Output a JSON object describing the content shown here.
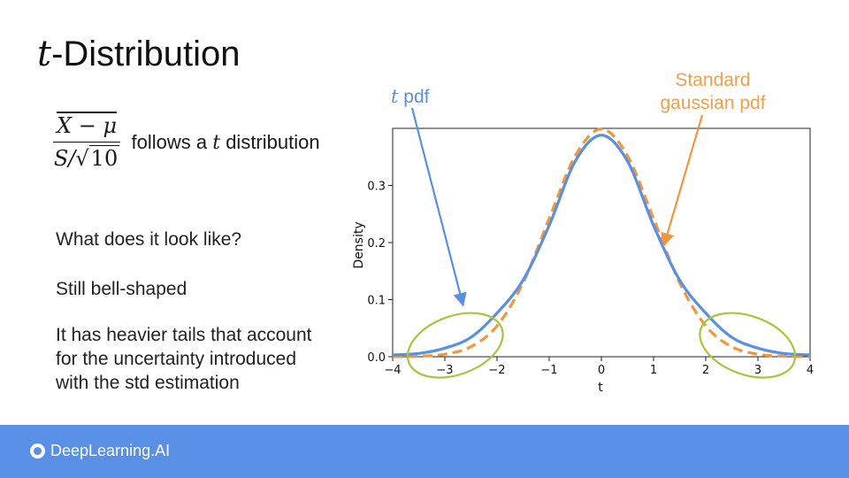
{
  "title": {
    "t": "t",
    "rest": "-Distribution"
  },
  "formula": {
    "numerator": "X − μ",
    "denominator_s": "S/",
    "sqrt_symbol": "√",
    "radicand": "10",
    "follows_prefix": "follows a ",
    "follows_t": "t",
    "follows_suffix": " distribution"
  },
  "body": {
    "q1": "What does it look like?",
    "q2": "Still bell-shaped",
    "q3_line1": "It has heavier tails that account",
    "q3_line2": "for the uncertainty introduced",
    "q3_line3": "with the std estimation"
  },
  "annotations": {
    "t_pdf_t": "t",
    "t_pdf_rest": " pdf",
    "gaussian_line1": "Standard",
    "gaussian_line2": "gaussian pdf"
  },
  "footer": {
    "brand": "DeepLearning.AI"
  },
  "colors": {
    "t_pdf": "#5b8fe0",
    "gaussian": "#f0963e",
    "tail_circles": "#a8c43a",
    "footer": "#5a8fe6"
  },
  "chart_data": {
    "type": "line",
    "xlabel": "t",
    "ylabel": "Density",
    "xlim": [
      -4,
      4
    ],
    "ylim": [
      0,
      0.4
    ],
    "xticks": [
      -4,
      -3,
      -2,
      -1,
      0,
      1,
      2,
      3,
      4
    ],
    "xtick_labels": [
      "−4",
      "−3",
      "−2",
      "−1",
      "0",
      "1",
      "2",
      "3",
      "4"
    ],
    "yticks": [
      0.0,
      0.1,
      0.2,
      0.3
    ],
    "ytick_labels": [
      "0.0",
      "0.1",
      "0.2",
      "0.3"
    ],
    "series": [
      {
        "name": "t pdf",
        "style": "solid",
        "x": [
          -4,
          -3.5,
          -3,
          -2.5,
          -2,
          -1.5,
          -1,
          -0.5,
          0,
          0.5,
          1,
          1.5,
          2,
          2.5,
          3,
          3.5,
          4
        ],
        "values": [
          0.0031,
          0.0058,
          0.015,
          0.0339,
          0.0765,
          0.1343,
          0.23,
          0.3425,
          0.388,
          0.3425,
          0.23,
          0.1343,
          0.0765,
          0.0339,
          0.015,
          0.0058,
          0.0031
        ]
      },
      {
        "name": "Standard gaussian pdf",
        "style": "dashed",
        "x": [
          -4,
          -3.5,
          -3,
          -2.5,
          -2,
          -1.5,
          -1,
          -0.5,
          0,
          0.5,
          1,
          1.5,
          2,
          2.5,
          3,
          3.5,
          4
        ],
        "values": [
          0.0001,
          0.0009,
          0.0044,
          0.0175,
          0.054,
          0.1295,
          0.242,
          0.3521,
          0.3989,
          0.3521,
          0.242,
          0.1295,
          0.054,
          0.0175,
          0.0044,
          0.0009,
          0.0001
        ]
      }
    ]
  }
}
